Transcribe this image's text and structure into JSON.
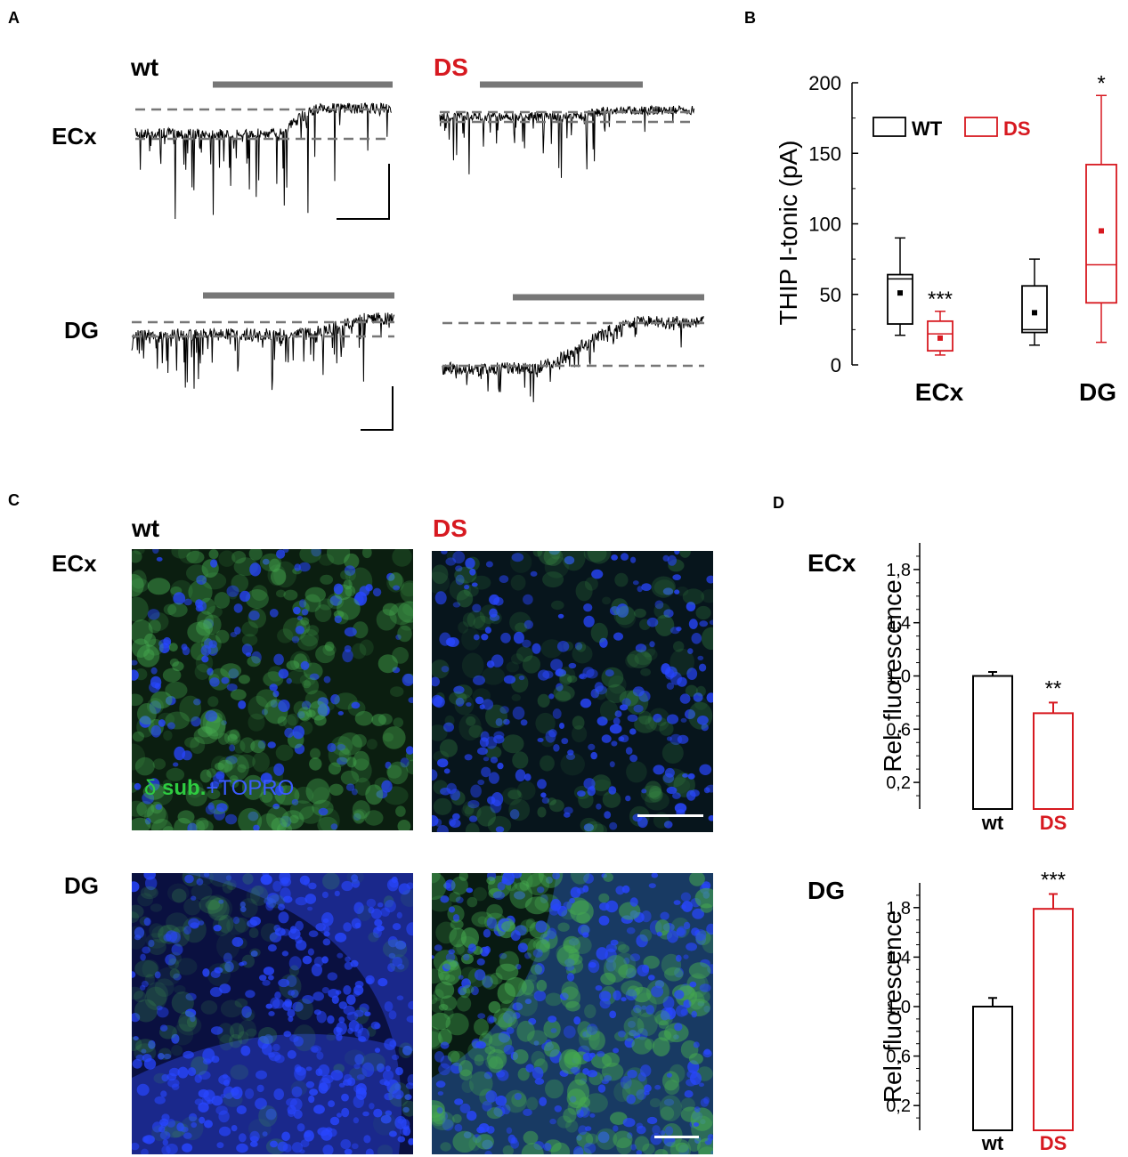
{
  "panels": {
    "a": "A",
    "b": "B",
    "c": "C",
    "d": "D"
  },
  "panel_a": {
    "col_wt": "wt",
    "col_ds": "DS",
    "row_ecx": "ECx",
    "row_dg": "DG"
  },
  "panel_c": {
    "col_wt": "wt",
    "col_ds": "DS",
    "row_ecx": "ECx",
    "row_dg": "DG",
    "stain_delta": "δ",
    "stain_sub": " sub.",
    "stain_topro": "+TOPRO"
  },
  "colors": {
    "wt": "#000000",
    "ds": "#d71920",
    "trace": "#000000",
    "dashed": "#777777",
    "drug_bar": "#777777",
    "stain_green": "#2ecc40",
    "stain_blue": "#3b5bff"
  },
  "chart_data": [
    {
      "id": "B",
      "type": "box",
      "ylabel": "THIP I-tonic (pA)",
      "ylim": [
        0,
        200
      ],
      "yticks": [
        0,
        50,
        100,
        150,
        200
      ],
      "categories": [
        "ECx",
        "DG"
      ],
      "legend": [
        "WT",
        "DS"
      ],
      "legend_position": "top",
      "series": [
        {
          "name": "WT",
          "color": "#000000",
          "boxes": [
            {
              "category": "ECx",
              "min": 21,
              "q1": 29,
              "median": 61,
              "q3": 64,
              "max": 90,
              "mean": 51
            },
            {
              "category": "DG",
              "min": 14,
              "q1": 23,
              "median": 25,
              "q3": 56,
              "max": 75,
              "mean": 37
            }
          ]
        },
        {
          "name": "DS",
          "color": "#d71920",
          "boxes": [
            {
              "category": "ECx",
              "min": 7,
              "q1": 10,
              "median": 22,
              "q3": 31,
              "max": 38,
              "mean": 19
            },
            {
              "category": "DG",
              "min": 16,
              "q1": 44,
              "median": 71,
              "q3": 142,
              "max": 191,
              "mean": 95
            }
          ]
        }
      ],
      "significance": [
        {
          "category": "ECx",
          "series": "DS",
          "label": "***"
        },
        {
          "category": "DG",
          "series": "DS",
          "label": "*"
        }
      ]
    },
    {
      "id": "D-ECx",
      "type": "bar",
      "title": "ECx",
      "ylabel": "Rel. fluorescence",
      "ylim": [
        0,
        2.0
      ],
      "yticks": [
        "0,2",
        "0,6",
        "1,0",
        "1,4",
        "1,8"
      ],
      "ytick_values": [
        0.2,
        0.6,
        1.0,
        1.4,
        1.8
      ],
      "categories": [
        "wt",
        "DS"
      ],
      "values": [
        1.0,
        0.72
      ],
      "errors": [
        0.03,
        0.08
      ],
      "colors": [
        "#000000",
        "#d71920"
      ],
      "significance": [
        {
          "category": "DS",
          "label": "**"
        }
      ]
    },
    {
      "id": "D-DG",
      "type": "bar",
      "title": "DG",
      "ylabel": "Rel. fluorescence",
      "ylim": [
        0,
        2.0
      ],
      "yticks": [
        "0,2",
        "0,6",
        "1,0",
        "1,4",
        "1,8"
      ],
      "ytick_values": [
        0.2,
        0.6,
        1.0,
        1.4,
        1.8
      ],
      "categories": [
        "wt",
        "DS"
      ],
      "values": [
        1.0,
        1.79
      ],
      "errors": [
        0.07,
        0.12
      ],
      "colors": [
        "#000000",
        "#d71920"
      ],
      "significance": [
        {
          "category": "DS",
          "label": "***"
        }
      ]
    }
  ]
}
